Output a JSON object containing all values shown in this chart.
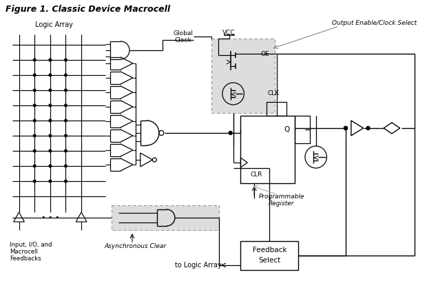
{
  "title": "Figure 1. Classic Device Macrocell",
  "bg": "#ffffff",
  "lc": "#000000",
  "gray_fill": "#d8d8d8",
  "labels": {
    "logic_array": "Logic Array",
    "global_clock_1": "Global",
    "global_clock_2": "Clock",
    "vcc": "VCC",
    "oe": "OE",
    "clk": "CLK",
    "output_enable": "Output Enable/Clock Select",
    "q": "Q",
    "clr": "CLR",
    "prog_reg_1": "Programmable",
    "prog_reg_2": "Register",
    "feedback_1": "Feedback",
    "feedback_2": "Select",
    "async_clear": "Asynchronous Clear",
    "to_logic": "to Logic Array",
    "input_1": "Input, I/O, and",
    "input_2": "Macrocell",
    "input_3": "Feedbacks",
    "dots": "• • •"
  }
}
